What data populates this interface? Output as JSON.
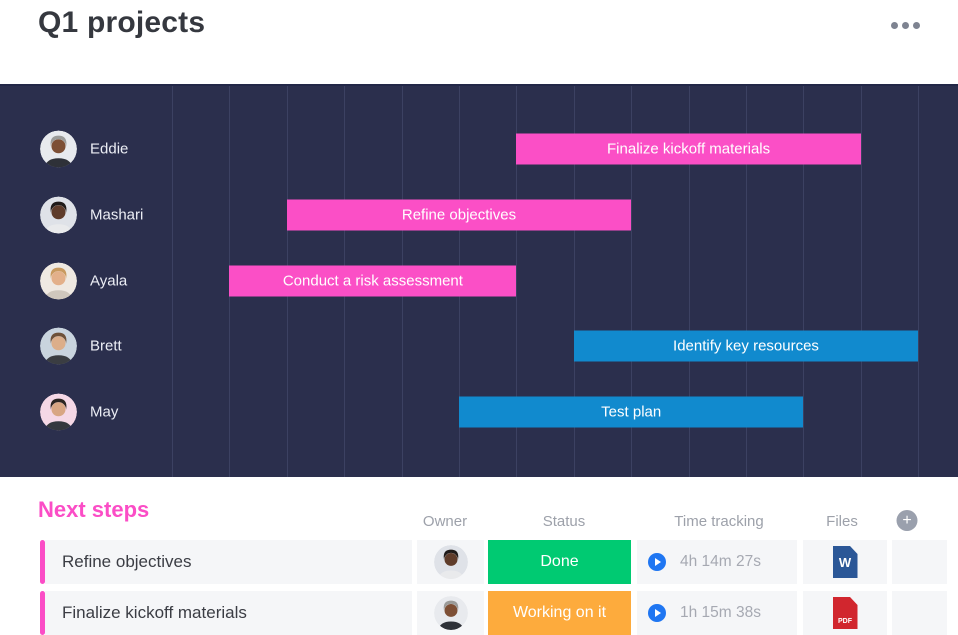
{
  "header": {
    "title": "Q1 projects"
  },
  "colors": {
    "panel_bg": "#2b2f4d",
    "gridline": "#3c4162",
    "pink": "#fb4fc6",
    "blue": "#118ace",
    "green": "#00ca72",
    "orange": "#fdab3d",
    "play_blue": "#1f76f2",
    "word_blue": "#2b5797",
    "pdf_red": "#d1262e",
    "accent_pink": "#fb4dc6"
  },
  "avatars": {
    "Eddie": {
      "bg": "#e8eaee",
      "skin": "#7d4f35",
      "hair": "#9b9b99",
      "shirt": "#2e3138"
    },
    "Mashari": {
      "bg": "#dfe2e8",
      "skin": "#5f3c2a",
      "hair": "#201b19",
      "shirt": "#e9eaec"
    },
    "Ayala": {
      "bg": "#efe9e2",
      "skin": "#e3b08a",
      "hair": "#c99a5f",
      "shirt": "#cfc7bd"
    },
    "Brett": {
      "bg": "#c9d4de",
      "skin": "#dcae8a",
      "hair": "#6e5139",
      "shirt": "#3a3d42"
    },
    "May": {
      "bg": "#f5d8e6",
      "skin": "#d8a683",
      "hair": "#2c2622",
      "shirt": "#35383e"
    }
  },
  "gantt": {
    "rows": [
      {
        "person": "Eddie",
        "task": "Finalize kickoff materials",
        "bar_color": "#fb4fc6",
        "start": 7,
        "span": 6
      },
      {
        "person": "Mashari",
        "task": "Refine objectives",
        "bar_color": "#fb4fc6",
        "start": 3,
        "span": 6
      },
      {
        "person": "Ayala",
        "task": "Conduct a risk assessment",
        "bar_color": "#fb4fc6",
        "start": 2,
        "span": 5
      },
      {
        "person": "Brett",
        "task": "Identify key resources",
        "bar_color": "#118ace",
        "start": 8,
        "span": 6
      },
      {
        "person": "May",
        "task": "Test plan",
        "bar_color": "#118ace",
        "start": 6,
        "span": 6
      }
    ]
  },
  "next_steps": {
    "title": "Next steps",
    "columns": {
      "owner": "Owner",
      "status": "Status",
      "time": "Time tracking",
      "files": "Files"
    },
    "add_button": "+",
    "rows": [
      {
        "task": "Refine objectives",
        "owner": "Mashari",
        "status": "Done",
        "status_color": "#00ca72",
        "time": "4h 14m 27s",
        "file_label": "W",
        "file_color": "#2b5797",
        "file_kind": "word-doc"
      },
      {
        "task": "Finalize kickoff materials",
        "owner": "Eddie",
        "status": "Working on it",
        "status_color": "#fdab3d",
        "time": "1h 15m 38s",
        "file_label": "PDF",
        "file_color": "#d1262e",
        "file_kind": "pdf-doc"
      }
    ]
  }
}
